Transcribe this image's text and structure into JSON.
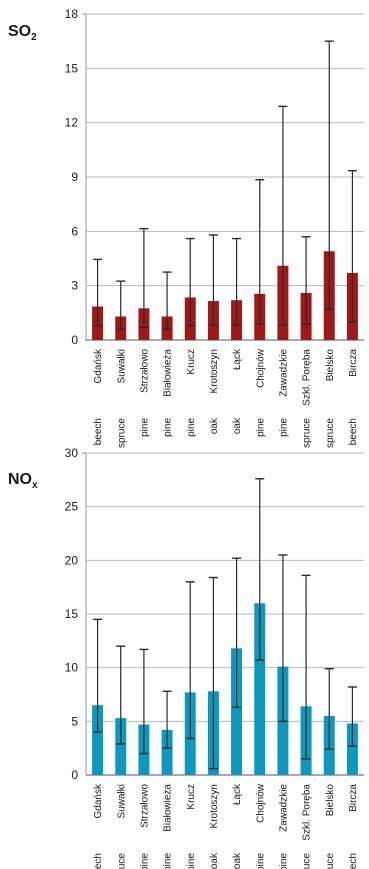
{
  "chart_data": [
    {
      "type": "bar",
      "title": "SO",
      "title_subscript": "2",
      "categories": [
        "Gdańsk",
        "Suwałki",
        "Strzałowo",
        "Białowieża",
        "Krucz",
        "Krotoszyn",
        "Łąck",
        "Chojnów",
        "Zawadzkie",
        "Szkl. Poręba",
        "Bielsko",
        "Bircza"
      ],
      "species": [
        "beech",
        "spruce",
        "pine",
        "pine",
        "pine",
        "oak",
        "oak",
        "pine",
        "pine",
        "spruce",
        "spruce",
        "beech"
      ],
      "values": [
        1.85,
        1.3,
        1.75,
        1.3,
        2.35,
        2.15,
        2.2,
        2.55,
        4.1,
        2.6,
        4.9,
        3.7
      ],
      "error_low": [
        0.8,
        0.6,
        0.7,
        0.6,
        0.8,
        0.8,
        0.8,
        0.9,
        0.8,
        0.9,
        1.7,
        1.0
      ],
      "error_high": [
        4.45,
        3.25,
        6.15,
        3.75,
        5.6,
        5.8,
        5.6,
        8.85,
        12.9,
        5.7,
        16.5,
        9.35
      ],
      "ylim": [
        0,
        18
      ],
      "yticks": [
        0,
        3,
        6,
        9,
        12,
        15,
        18
      ],
      "grid": true,
      "color": "#9e1a1a"
    },
    {
      "type": "bar",
      "title": "NO",
      "title_subscript": "x",
      "categories": [
        "Gdańsk",
        "Suwałki",
        "Strzałowo",
        "Białowieża",
        "Krucz",
        "Krotoszyn",
        "Łąck",
        "Chojnów",
        "Zawadzkie",
        "Szkl. Poręba",
        "Bielsko",
        "Bircza"
      ],
      "species": [
        "beech",
        "spruce",
        "pine",
        "pine",
        "pine",
        "oak",
        "oak",
        "pine",
        "pine",
        "spruce",
        "spruce",
        "beech"
      ],
      "values": [
        6.5,
        5.3,
        4.7,
        4.2,
        7.7,
        7.8,
        11.8,
        16.0,
        10.1,
        6.4,
        5.5,
        4.8
      ],
      "error_low": [
        4.0,
        2.9,
        2.0,
        2.5,
        3.4,
        0.6,
        6.3,
        10.7,
        5.0,
        1.5,
        2.4,
        2.7
      ],
      "error_high": [
        14.5,
        12.0,
        11.7,
        7.8,
        18.0,
        18.4,
        20.2,
        27.6,
        20.5,
        18.6,
        9.9,
        8.2
      ],
      "ylim": [
        0,
        30
      ],
      "yticks": [
        0,
        5,
        10,
        15,
        20,
        25,
        30
      ],
      "grid": true,
      "color": "#0f97be"
    }
  ]
}
